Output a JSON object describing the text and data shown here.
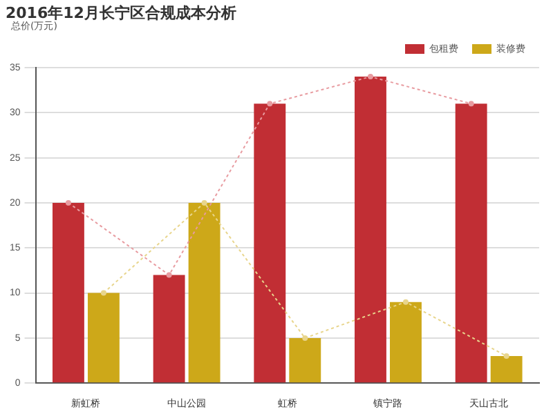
{
  "chart_data": {
    "type": "bar",
    "title": "2016年12月长宁区合规成本分析",
    "ylabel": "总价(万元)",
    "categories": [
      "新虹桥",
      "中山公园",
      "虹桥",
      "镇宁路",
      "天山古北"
    ],
    "series": [
      {
        "name": "包租费",
        "color": "#c12e34",
        "values": [
          20,
          12,
          31,
          34,
          31
        ]
      },
      {
        "name": "装修费",
        "color": "#cda819",
        "values": [
          10,
          20,
          5,
          9,
          3
        ]
      },
      {
        "type": "line",
        "color": "#e89ba0",
        "values": [
          20,
          12,
          31,
          34,
          31
        ],
        "line_style": "dotted",
        "marker": "circle"
      },
      {
        "type": "line",
        "color": "#e8d58c",
        "values": [
          10,
          20,
          5,
          9,
          3
        ],
        "line_style": "dotted",
        "marker": "circle"
      }
    ],
    "ylim": [
      0,
      35
    ],
    "yticks": [
      0,
      5,
      10,
      15,
      20,
      25,
      30,
      35
    ],
    "grid": "y",
    "legend": "top right"
  }
}
